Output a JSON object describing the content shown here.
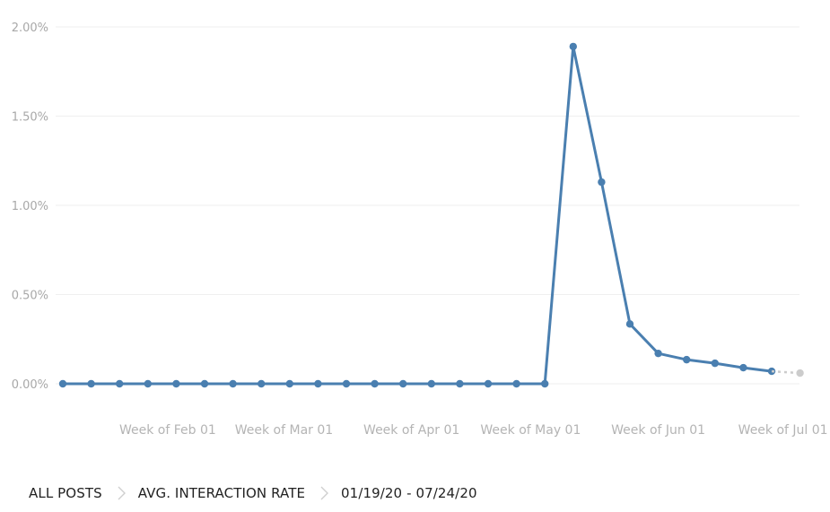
{
  "chart_data": {
    "type": "line",
    "y_ticks": [
      "0.00%",
      "0.50%",
      "1.00%",
      "1.50%",
      "2.00%"
    ],
    "ylim": [
      0,
      2.0
    ],
    "y_unit": "%",
    "x_tick_labels": [
      {
        "label": "Week of Feb 01",
        "x": 3.7
      },
      {
        "label": "Week of Mar 01",
        "x": 7.8
      },
      {
        "label": "Week of Apr 01",
        "x": 12.3
      },
      {
        "label": "Week of May 01",
        "x": 16.5
      },
      {
        "label": "Week of Jun 01",
        "x": 21.0
      },
      {
        "label": "Week of Jul 01",
        "x": 25.4
      }
    ],
    "xlim": [
      -0.5,
      26.5
    ],
    "grid": true,
    "series": [
      {
        "color": "#4a7fb0",
        "values": [
          0,
          0,
          0,
          0,
          0,
          0,
          0,
          0,
          0,
          0,
          0,
          0,
          0,
          0,
          0,
          0,
          0,
          0,
          1.89,
          1.13,
          0.335,
          0.17,
          0.135,
          0.115,
          0.09,
          0.07
        ]
      },
      {
        "color": "#cccccc",
        "style": "dotted",
        "projected": true,
        "x": [
          25,
          26
        ],
        "values": [
          0.07,
          0.06
        ]
      }
    ]
  },
  "breadcrumb": {
    "item1": "ALL POSTS",
    "item2": "AVG. INTERACTION RATE",
    "item3": "01/19/20 - 07/24/20"
  }
}
